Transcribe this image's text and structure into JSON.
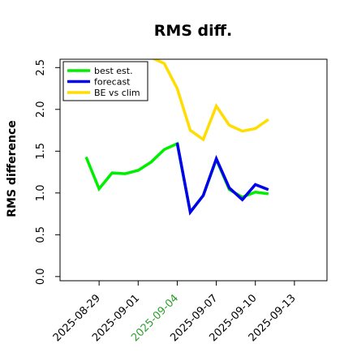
{
  "chart_data": {
    "type": "line",
    "title": "RMS diff.",
    "xlabel": "",
    "ylabel": "RMS difference",
    "ylim": [
      -0.05,
      2.6
    ],
    "yticks": [
      0.0,
      0.5,
      1.0,
      1.5,
      2.0,
      2.5
    ],
    "ytick_labels": [
      "0.0",
      "0.5",
      "1.0",
      "1.5",
      "2.0",
      "2.5"
    ],
    "xlim": [
      "2025-08-26T00:00",
      "2025-09-15T12:00"
    ],
    "xticks": [
      "2025-08-29",
      "2025-09-01",
      "2025-09-04",
      "2025-09-07",
      "2025-09-10",
      "2025-09-13"
    ],
    "xtick_labels": [
      "2025-08-29",
      "2025-09-01",
      "2025-09-04",
      "2025-09-07",
      "2025-09-10",
      "2025-09-13"
    ],
    "highlighted_tick": "2025-09-04",
    "highlight_color": "#2ca02c",
    "legend_position": "top-left",
    "grid": false,
    "series": [
      {
        "name": "best est.",
        "color": "#00ee00",
        "x": [
          "2025-08-28",
          "2025-08-29",
          "2025-08-30",
          "2025-08-31",
          "2025-09-01",
          "2025-09-02",
          "2025-09-03",
          "2025-09-04",
          "2025-09-05",
          "2025-09-06",
          "2025-09-07",
          "2025-09-08",
          "2025-09-09",
          "2025-09-10",
          "2025-09-11"
        ],
        "values": [
          1.43,
          1.05,
          1.24,
          1.23,
          1.27,
          1.37,
          1.52,
          1.59,
          0.77,
          0.97,
          1.4,
          1.04,
          0.95,
          1.01,
          0.99
        ]
      },
      {
        "name": "forecast",
        "color": "#0000ee",
        "x": [
          "2025-09-04",
          "2025-09-05",
          "2025-09-06",
          "2025-09-07",
          "2025-09-08",
          "2025-09-09",
          "2025-09-10",
          "2025-09-11"
        ],
        "values": [
          1.6,
          0.77,
          0.97,
          1.41,
          1.06,
          0.92,
          1.1,
          1.04
        ]
      },
      {
        "name": "BE vs clim",
        "color": "#ffdd00",
        "x": [
          "2025-09-02",
          "2025-09-03",
          "2025-09-04",
          "2025-09-05",
          "2025-09-06",
          "2025-09-07",
          "2025-09-08",
          "2025-09-09",
          "2025-09-10",
          "2025-09-11"
        ],
        "values": [
          2.62,
          2.55,
          2.25,
          1.75,
          1.64,
          2.04,
          1.81,
          1.74,
          1.77,
          1.88
        ]
      }
    ]
  }
}
